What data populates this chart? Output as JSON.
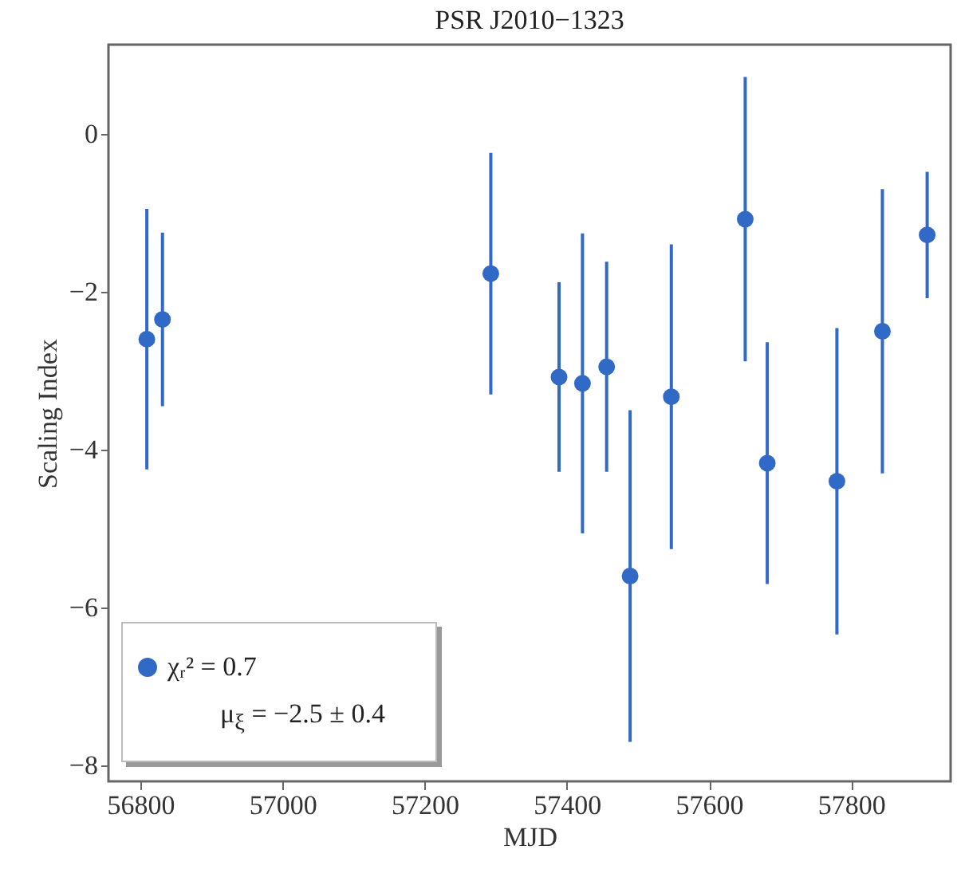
{
  "chart_data": {
    "type": "scatter",
    "title": "PSR J2010−1323",
    "xlabel": "MJD",
    "ylabel": "Scaling Index",
    "x": [
      56809,
      56831,
      57293,
      57389,
      57422,
      57456,
      57489,
      57547,
      57651,
      57682,
      57780,
      57844,
      57907
    ],
    "series": [
      {
        "name": "χᵣ² = 0.7",
        "color": "#3169c6",
        "values": [
          -2.6,
          -2.35,
          -1.77,
          -3.08,
          -3.16,
          -2.95,
          -5.6,
          -3.33,
          -1.08,
          -4.17,
          -4.4,
          -2.5,
          -1.28
        ],
        "errors": [
          1.65,
          1.1,
          1.53,
          1.2,
          1.9,
          1.33,
          2.1,
          1.93,
          1.8,
          1.53,
          1.94,
          1.8,
          0.8
        ]
      }
    ],
    "annotations": [
      "μ$_{ξ}$ = −2.5 ± 0.4"
    ],
    "xlim": [
      56755,
      57940
    ],
    "ylim": [
      -8.2,
      1.13
    ],
    "xticks": [
      56800,
      57000,
      57200,
      57400,
      57600,
      57800
    ],
    "yticks": [
      -8,
      -6,
      -4,
      -2,
      0
    ],
    "grid": false,
    "legend": "bottom left",
    "marker": "circle"
  }
}
